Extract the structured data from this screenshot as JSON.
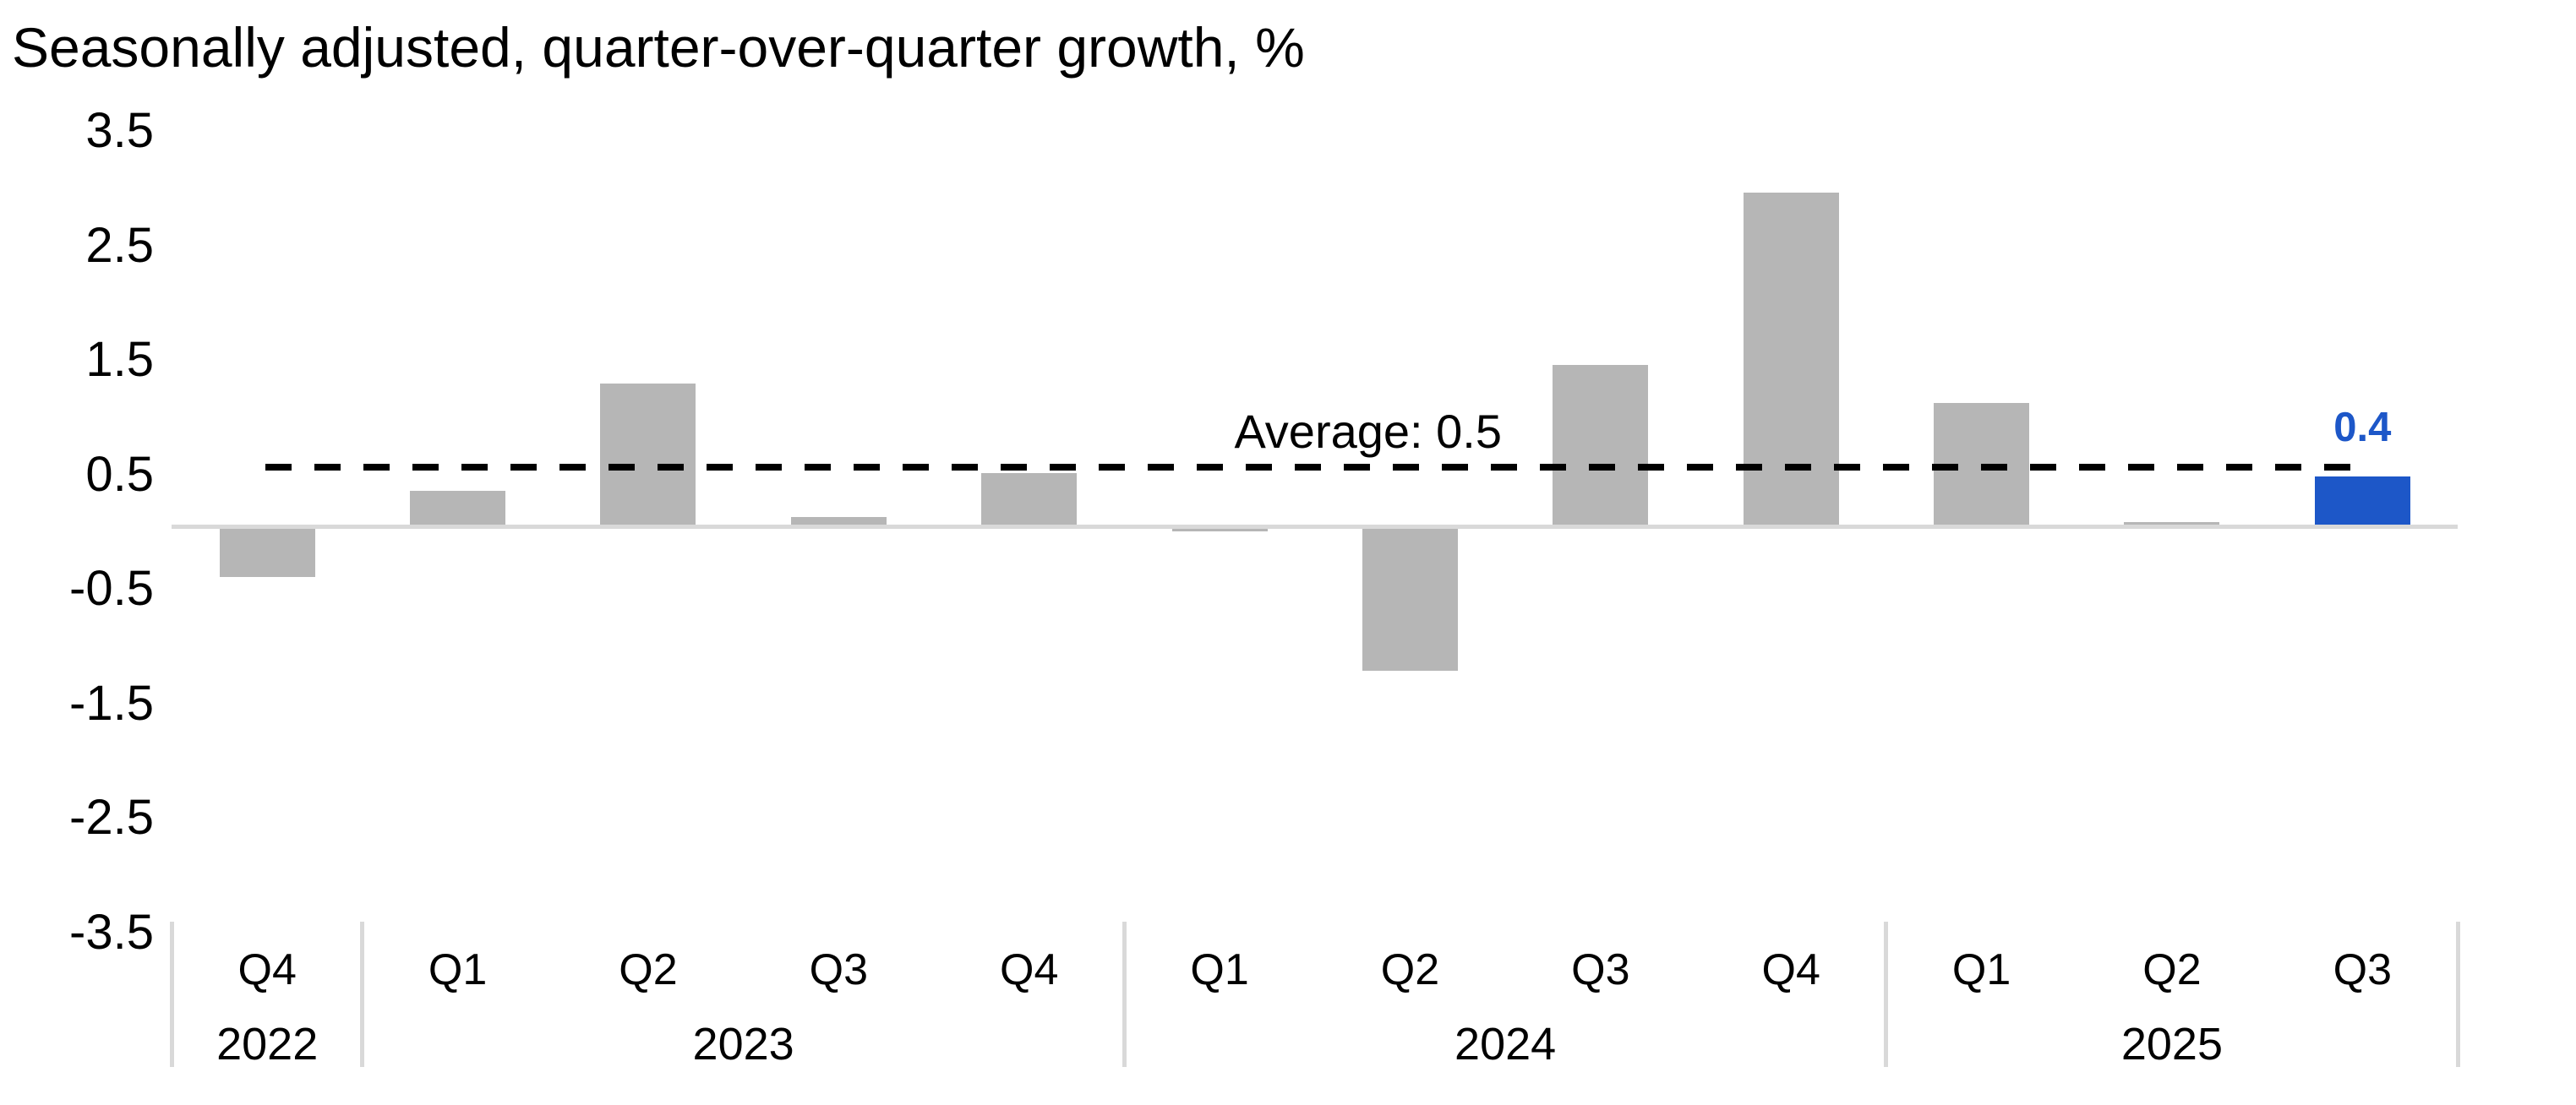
{
  "title": "Seasonally adjusted, quarter-over-quarter growth, %",
  "chart_data": {
    "type": "bar",
    "title": "Seasonally adjusted, quarter-over-quarter growth, %",
    "xlabel": "",
    "ylabel": "",
    "ylim": [
      -3.5,
      3.5
    ],
    "y_tick_labels": [
      "3.5",
      "2.5",
      "1.5",
      "0.5",
      "-0.5",
      "-1.5",
      "-2.5",
      "-3.5"
    ],
    "y_tick_values": [
      3.5,
      2.5,
      1.5,
      0.5,
      -0.5,
      -1.5,
      -2.5,
      -3.5
    ],
    "grid": "off",
    "legend": "none",
    "categories": [
      "Q4 2022",
      "Q1 2023",
      "Q2 2023",
      "Q3 2023",
      "Q4 2023",
      "Q1 2024",
      "Q2 2024",
      "Q3 2024",
      "Q4 2024",
      "Q1 2025",
      "Q2 2025",
      "Q3 2025"
    ],
    "quarter_labels": [
      "Q4",
      "Q1",
      "Q2",
      "Q3",
      "Q4",
      "Q1",
      "Q2",
      "Q3",
      "Q4",
      "Q1",
      "Q2",
      "Q3"
    ],
    "year_groups": [
      {
        "label": "2022",
        "quarters": 1
      },
      {
        "label": "2023",
        "quarters": 4
      },
      {
        "label": "2024",
        "quarters": 4
      },
      {
        "label": "2025",
        "quarters": 3
      }
    ],
    "values": [
      -0.44,
      0.31,
      1.25,
      0.08,
      0.47,
      -0.04,
      -1.26,
      1.41,
      2.92,
      1.08,
      0.04,
      0.44
    ],
    "average_line": {
      "value": 0.52,
      "label": "Average: 0.5"
    },
    "highlight": {
      "index": 11,
      "label": "0.4"
    },
    "colors": {
      "bar": "#b6b6b6",
      "highlight_bar": "#1d57c8",
      "highlight_label": "#1d57c8",
      "baseline": "#d9d9d9",
      "separator": "#d9d9d9",
      "dashed_line": "#000000",
      "text": "#000000"
    }
  }
}
